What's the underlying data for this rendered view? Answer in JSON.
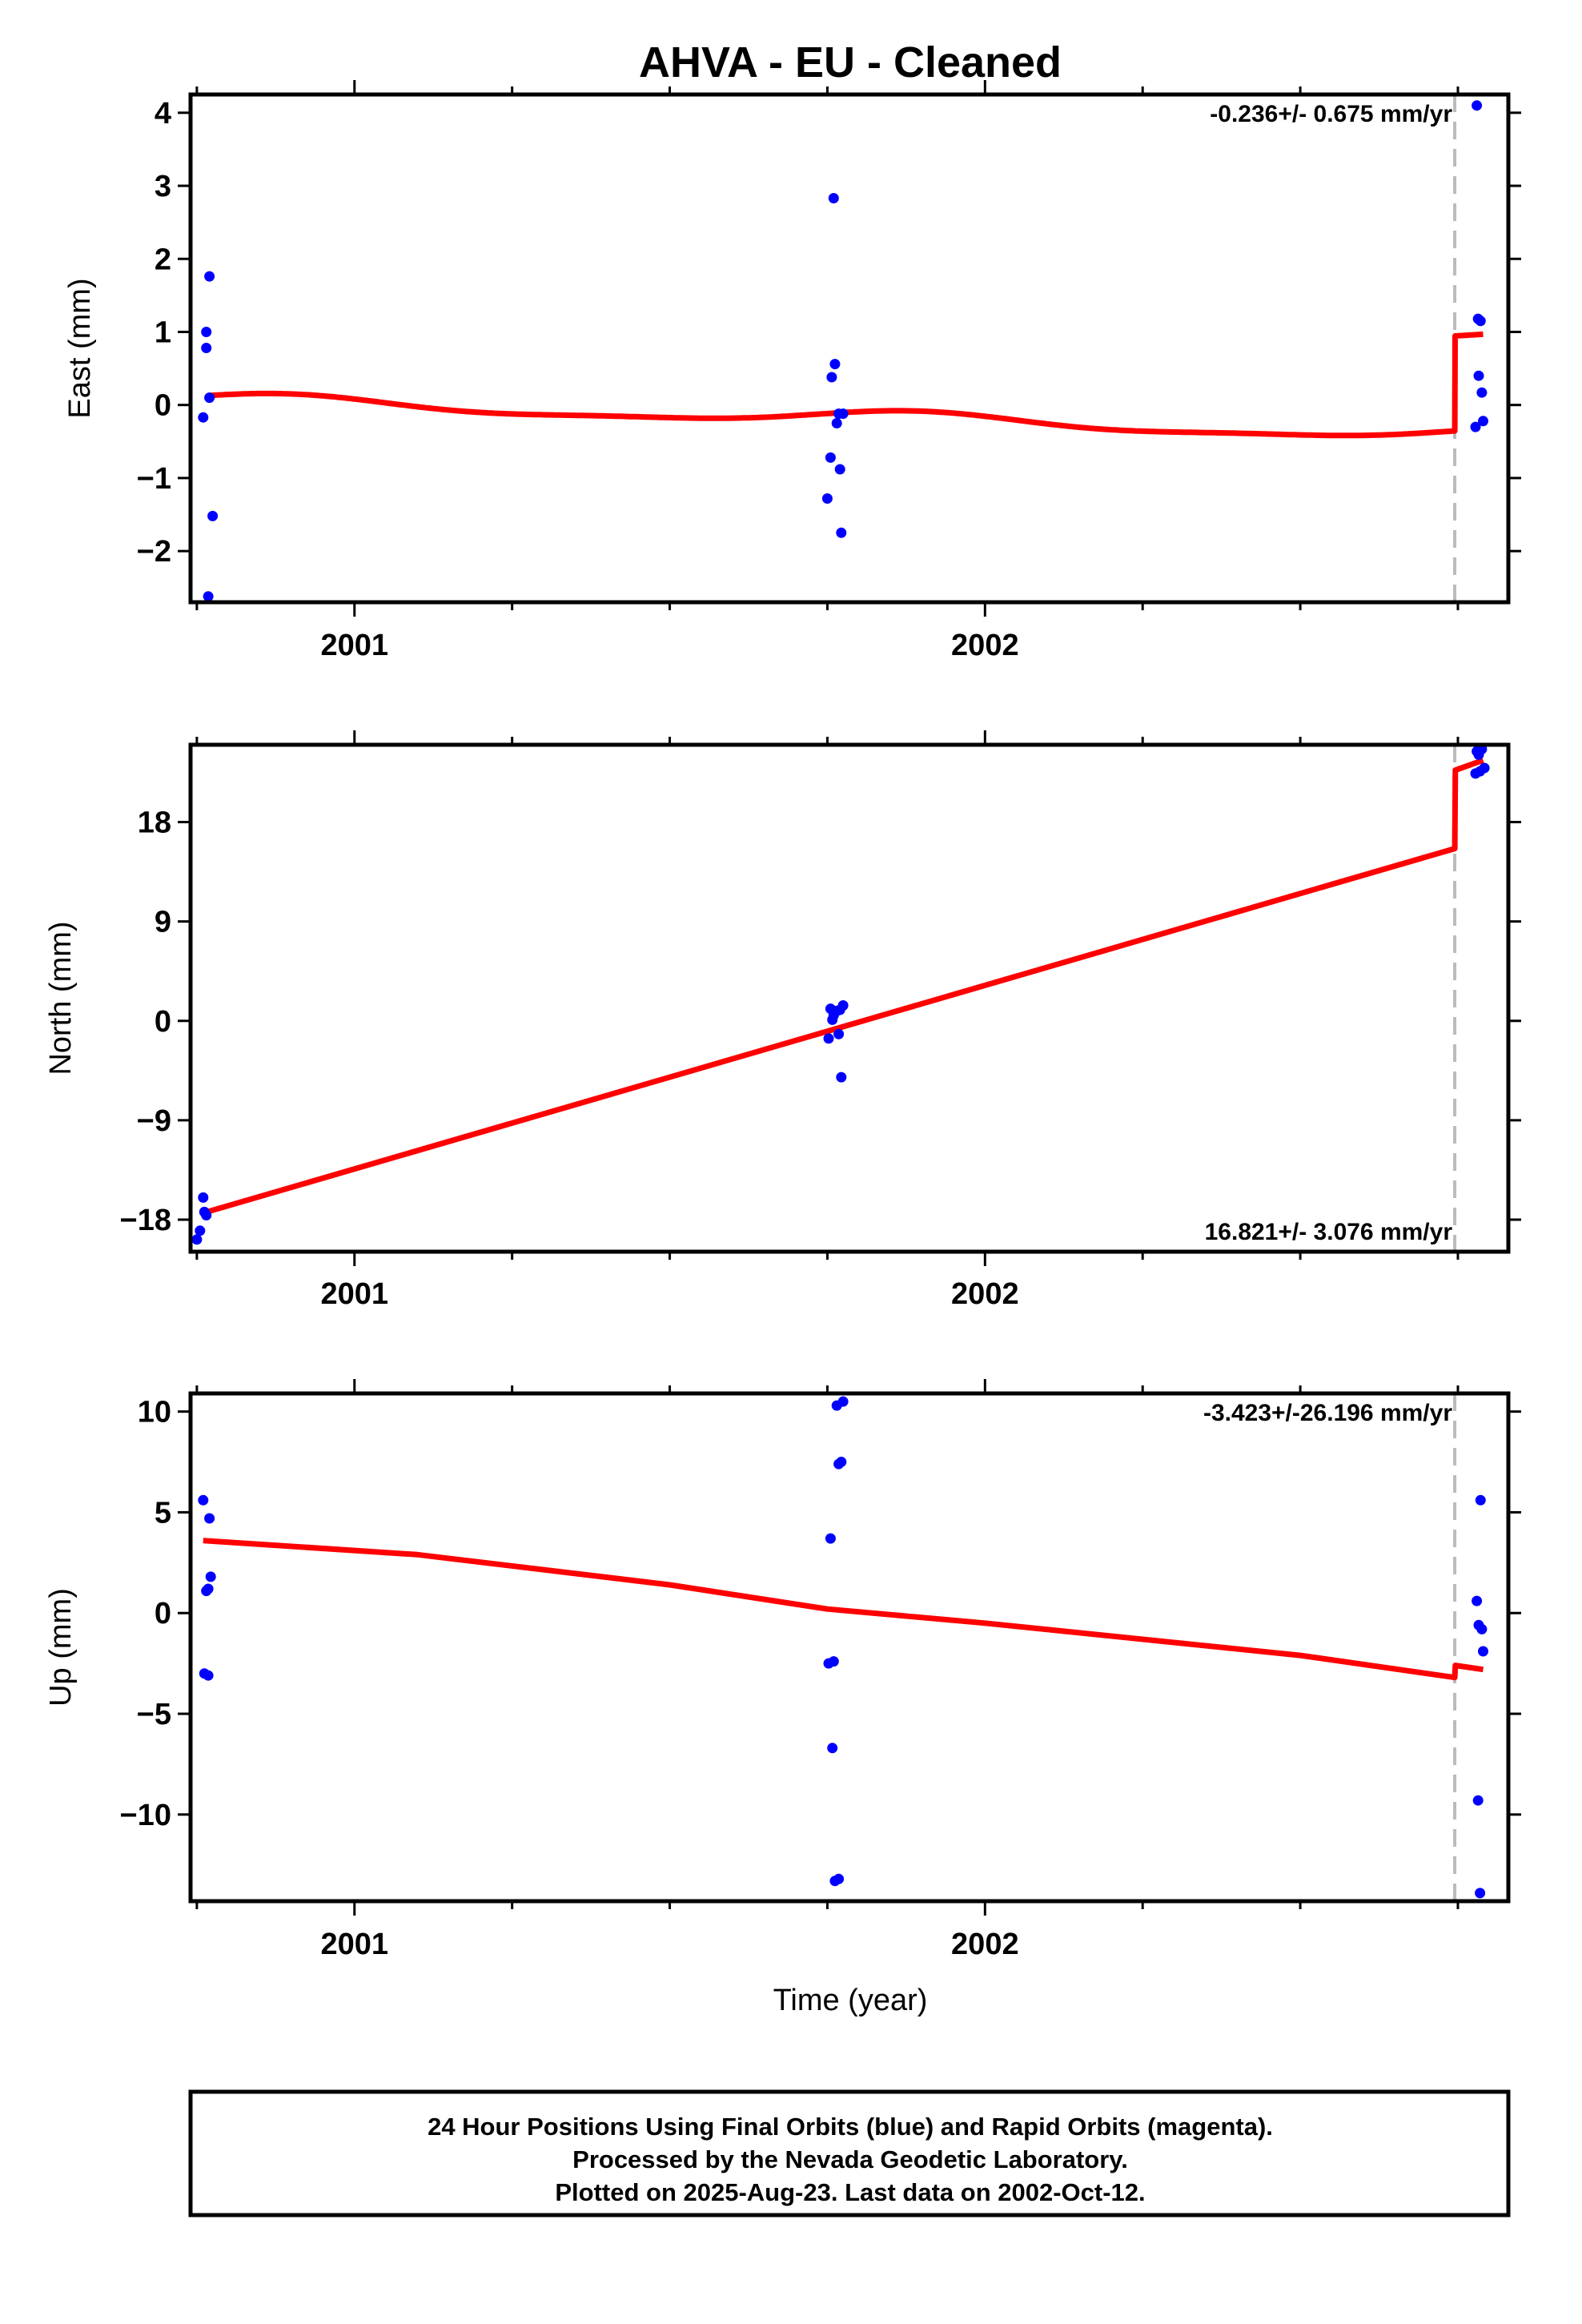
{
  "title": "AHVA  - EU - Cleaned",
  "xlabel": "Time (year)",
  "x_tick_labels": [
    "2001",
    "2002"
  ],
  "footer": {
    "line1": "24 Hour Positions Using Final Orbits (blue) and Rapid Orbits (magenta).",
    "line2": "Processed by the Nevada Geodetic Laboratory.",
    "line3": "Plotted on 2025-Aug-23. Last data on 2002-Oct-12."
  },
  "colors": {
    "points": "#0000ff",
    "fit": "#ff0000",
    "break": "#bbbbbb",
    "frame": "#000000"
  },
  "chart_data": [
    {
      "type": "scatter",
      "ylabel": "East (mm)",
      "rate_label": "-0.236+/- 0.675 mm/yr",
      "xlim": [
        2000.74,
        2002.83
      ],
      "ylim": [
        -2.7,
        4.25
      ],
      "yticks": [
        -2,
        -1,
        0,
        1,
        2,
        3,
        4
      ],
      "ytick_labels": [
        "−2",
        "−1",
        "0",
        "1",
        "2",
        "3",
        "4"
      ],
      "xticks_major": [
        2001,
        2002
      ],
      "xticks_minor": [
        2000.75,
        2001.25,
        2001.5,
        2001.75,
        2002.25,
        2002.5,
        2002.75
      ],
      "break_x": 2002.745,
      "points": [
        [
          2000.76,
          -0.17
        ],
        [
          2000.765,
          1.0
        ],
        [
          2000.765,
          0.78
        ],
        [
          2000.77,
          1.76
        ],
        [
          2000.77,
          0.1
        ],
        [
          2000.775,
          -1.52
        ],
        [
          2000.768,
          -2.62
        ],
        [
          2001.76,
          2.83
        ],
        [
          2001.757,
          0.38
        ],
        [
          2001.762,
          0.56
        ],
        [
          2001.768,
          -0.12
        ],
        [
          2001.765,
          -0.25
        ],
        [
          2001.775,
          -0.12
        ],
        [
          2001.755,
          -0.72
        ],
        [
          2001.77,
          -0.88
        ],
        [
          2001.75,
          -1.28
        ],
        [
          2001.772,
          -1.75
        ],
        [
          2002.78,
          4.1
        ],
        [
          2002.782,
          1.18
        ],
        [
          2002.786,
          1.15
        ],
        [
          2002.783,
          0.4
        ],
        [
          2002.788,
          0.17
        ],
        [
          2002.778,
          -0.3
        ],
        [
          2002.79,
          -0.22
        ]
      ],
      "fit_model": {
        "kind": "seasonal",
        "t0": 2000.77,
        "b0": 0.06,
        "rate": -0.236,
        "a_sin": 0.06,
        "a_cos": 0.07,
        "a_semi": 0.03,
        "break_x": 2002.745,
        "offset": 1.3,
        "end_x": 2002.79
      }
    },
    {
      "type": "scatter",
      "ylabel": "North (mm)",
      "rate_label": "16.821+/- 3.076 mm/yr",
      "xlim": [
        2000.74,
        2002.83
      ],
      "ylim": [
        -20.9,
        25.0
      ],
      "yticks": [
        -18,
        -9,
        0,
        9,
        18
      ],
      "ytick_labels": [
        "−18",
        "−9",
        "0",
        "9",
        "18"
      ],
      "xticks_major": [
        2001,
        2002
      ],
      "xticks_minor": [
        2000.75,
        2001.25,
        2001.5,
        2001.75,
        2002.25,
        2002.5,
        2002.75
      ],
      "break_x": 2002.745,
      "points": [
        [
          2000.76,
          -16.0
        ],
        [
          2000.762,
          -17.3
        ],
        [
          2000.765,
          -17.6
        ],
        [
          2000.755,
          -19.0
        ],
        [
          2000.75,
          -19.8
        ],
        [
          2001.755,
          1.1
        ],
        [
          2001.76,
          0.5
        ],
        [
          2001.765,
          0.9
        ],
        [
          2001.77,
          1.0
        ],
        [
          2001.775,
          1.4
        ],
        [
          2001.758,
          0.1
        ],
        [
          2001.752,
          -1.6
        ],
        [
          2001.768,
          -1.2
        ],
        [
          2001.772,
          -5.1
        ],
        [
          2002.78,
          24.4
        ],
        [
          2002.783,
          24.1
        ],
        [
          2002.788,
          24.6
        ],
        [
          2002.778,
          22.4
        ],
        [
          2002.785,
          22.6
        ],
        [
          2002.792,
          22.9
        ]
      ],
      "fit_model": {
        "kind": "linear",
        "points": [
          [
            2000.76,
            -17.4
          ],
          [
            2002.745,
            15.6
          ],
          [
            2002.746,
            22.7
          ],
          [
            2002.79,
            23.6
          ]
        ]
      }
    },
    {
      "type": "scatter",
      "ylabel": "Up (mm)",
      "rate_label": "-3.423+/-26.196 mm/yr",
      "xlim": [
        2000.74,
        2002.83
      ],
      "ylim": [
        -14.3,
        10.9
      ],
      "yticks": [
        -10,
        -5,
        0,
        5,
        10
      ],
      "ytick_labels": [
        "−10",
        "−5",
        "0",
        "5",
        "10"
      ],
      "xticks_major": [
        2001,
        2002
      ],
      "xticks_minor": [
        2000.75,
        2001.25,
        2001.5,
        2001.75,
        2002.25,
        2002.5,
        2002.75
      ],
      "break_x": 2002.745,
      "points": [
        [
          2000.76,
          5.6
        ],
        [
          2000.77,
          4.7
        ],
        [
          2000.765,
          1.1
        ],
        [
          2000.768,
          1.2
        ],
        [
          2000.772,
          1.8
        ],
        [
          2000.762,
          -3.0
        ],
        [
          2000.768,
          -3.1
        ],
        [
          2001.765,
          10.3
        ],
        [
          2001.775,
          10.5
        ],
        [
          2001.768,
          7.4
        ],
        [
          2001.772,
          7.5
        ],
        [
          2001.755,
          3.7
        ],
        [
          2001.752,
          -2.5
        ],
        [
          2001.76,
          -2.4
        ],
        [
          2001.758,
          -6.7
        ],
        [
          2001.762,
          -13.3
        ],
        [
          2001.768,
          -13.2
        ],
        [
          2002.78,
          0.6
        ],
        [
          2002.783,
          -0.6
        ],
        [
          2002.788,
          -0.8
        ],
        [
          2002.79,
          -1.9
        ],
        [
          2002.786,
          5.6
        ],
        [
          2002.782,
          -9.3
        ],
        [
          2002.785,
          -13.9
        ]
      ],
      "fit_model": {
        "kind": "linear",
        "points": [
          [
            2000.76,
            3.6
          ],
          [
            2001.1,
            2.9
          ],
          [
            2001.5,
            1.4
          ],
          [
            2001.75,
            0.2
          ],
          [
            2002.0,
            -0.5
          ],
          [
            2002.5,
            -2.1
          ],
          [
            2002.745,
            -3.2
          ],
          [
            2002.746,
            -2.6
          ],
          [
            2002.79,
            -2.8
          ]
        ]
      }
    }
  ]
}
